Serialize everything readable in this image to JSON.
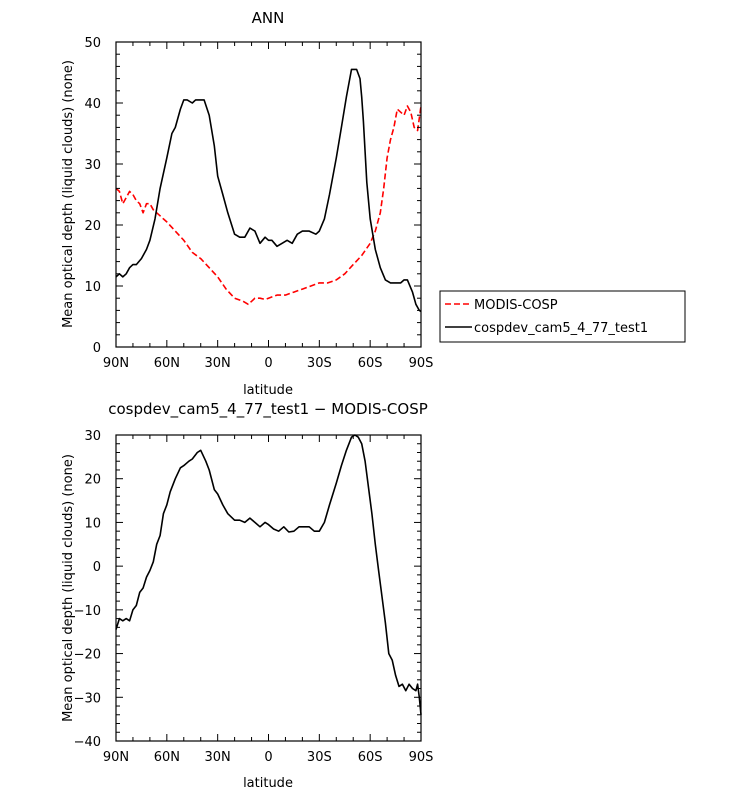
{
  "chart_data": [
    {
      "type": "line",
      "title": "ANN",
      "xlabel": "latitude",
      "ylabel": "Mean optical depth (liquid clouds) (none)",
      "xlim": [
        90,
        -90
      ],
      "ylim": [
        0,
        50
      ],
      "xticks": [
        {
          "value": 90,
          "label": "90N"
        },
        {
          "value": 60,
          "label": "60N"
        },
        {
          "value": 30,
          "label": "30N"
        },
        {
          "value": 0,
          "label": "0"
        },
        {
          "value": -30,
          "label": "30S"
        },
        {
          "value": -60,
          "label": "60S"
        },
        {
          "value": -90,
          "label": "90S"
        }
      ],
      "yticks": [
        {
          "value": 0,
          "label": "0"
        },
        {
          "value": 10,
          "label": "10"
        },
        {
          "value": 20,
          "label": "20"
        },
        {
          "value": 30,
          "label": "30"
        },
        {
          "value": 40,
          "label": "40"
        },
        {
          "value": 50,
          "label": "50"
        }
      ],
      "legend_position": "right",
      "series": [
        {
          "name": "MODIS-COSP",
          "color": "#ff0000",
          "dash": "dashed",
          "x": [
            90,
            88,
            86,
            84,
            82,
            80,
            78,
            76,
            74,
            72,
            70,
            68,
            66,
            64,
            62,
            60,
            55,
            50,
            45,
            40,
            35,
            30,
            25,
            20,
            15,
            12,
            10,
            8,
            5,
            2,
            0,
            -5,
            -10,
            -15,
            -20,
            -25,
            -30,
            -35,
            -40,
            -45,
            -50,
            -55,
            -60,
            -63,
            -66,
            -68,
            -70,
            -72,
            -74,
            -76,
            -78,
            -80,
            -82,
            -84,
            -86,
            -88,
            -90
          ],
          "y": [
            26,
            25.5,
            23.5,
            24.5,
            25.5,
            25,
            24,
            23.5,
            22,
            23.5,
            23.5,
            22.5,
            22,
            21.5,
            21,
            20.5,
            19,
            17.5,
            15.5,
            14.5,
            13,
            11.5,
            9.5,
            8,
            7.5,
            7,
            7.5,
            8,
            8,
            7.8,
            8,
            8.5,
            8.5,
            9,
            9.5,
            10,
            10.5,
            10.5,
            11,
            12,
            13.5,
            15,
            17,
            19,
            22,
            26,
            31,
            34,
            36,
            39,
            38.5,
            38,
            39.5,
            38.5,
            36,
            35.5,
            39.5
          ]
        },
        {
          "name": "cospdev_cam5_4_77_test1",
          "color": "#000000",
          "dash": "solid",
          "x": [
            90,
            88,
            86,
            84,
            82,
            80,
            78,
            75,
            72,
            70,
            67,
            64,
            60,
            57,
            55,
            52,
            50,
            48,
            45,
            43,
            40,
            38,
            35,
            32,
            30,
            27,
            24,
            20,
            17,
            14,
            11,
            8,
            5,
            2,
            0,
            -2,
            -5,
            -8,
            -11,
            -14,
            -17,
            -20,
            -24,
            -28,
            -30,
            -33,
            -36,
            -40,
            -43,
            -46,
            -49,
            -52,
            -54,
            -55,
            -56,
            -57,
            -58,
            -60,
            -63,
            -66,
            -69,
            -72,
            -75,
            -78,
            -80,
            -82,
            -85,
            -87,
            -89,
            -90
          ],
          "y": [
            11.5,
            12,
            11.5,
            12,
            13,
            13.5,
            13.5,
            14.5,
            16,
            17.5,
            21,
            26,
            31,
            35,
            36,
            39,
            40.5,
            40.5,
            40,
            40.5,
            40.5,
            40.5,
            38,
            33,
            28,
            25,
            22,
            18.5,
            18,
            18,
            19.5,
            19,
            17,
            18,
            17.5,
            17.5,
            16.5,
            17,
            17.5,
            17,
            18.5,
            19,
            19,
            18.5,
            19,
            21,
            25,
            31,
            36,
            41,
            45.5,
            45.5,
            44,
            41,
            37,
            32,
            27,
            21,
            16,
            13,
            11,
            10.5,
            10.5,
            10.5,
            11,
            11,
            9,
            7,
            6,
            5.8
          ]
        }
      ]
    },
    {
      "type": "line",
      "title": "cospdev_cam5_4_77_test1 − MODIS-COSP",
      "xlabel": "latitude",
      "ylabel": "Mean optical depth (liquid clouds) (none)",
      "xlim": [
        90,
        -90
      ],
      "ylim": [
        -40,
        30
      ],
      "xticks": [
        {
          "value": 90,
          "label": "90N"
        },
        {
          "value": 60,
          "label": "60N"
        },
        {
          "value": 30,
          "label": "30N"
        },
        {
          "value": 0,
          "label": "0"
        },
        {
          "value": -30,
          "label": "30S"
        },
        {
          "value": -60,
          "label": "60S"
        },
        {
          "value": -90,
          "label": "90S"
        }
      ],
      "yticks": [
        {
          "value": -40,
          "label": "−40"
        },
        {
          "value": -30,
          "label": "−30"
        },
        {
          "value": -20,
          "label": "−20"
        },
        {
          "value": -10,
          "label": "−10"
        },
        {
          "value": 0,
          "label": "0"
        },
        {
          "value": 10,
          "label": "10"
        },
        {
          "value": 20,
          "label": "20"
        },
        {
          "value": 30,
          "label": "30"
        }
      ],
      "series": [
        {
          "color": "#000000",
          "dash": "solid",
          "x": [
            90,
            88,
            86,
            84,
            82,
            80,
            78,
            76,
            74,
            72,
            70,
            68,
            66,
            64,
            62,
            60,
            58,
            55,
            52,
            50,
            47,
            45,
            42,
            40,
            37,
            35,
            32,
            30,
            27,
            24,
            20,
            17,
            14,
            11,
            8,
            5,
            2,
            0,
            -3,
            -6,
            -9,
            -12,
            -15,
            -18,
            -21,
            -24,
            -27,
            -30,
            -33,
            -36,
            -40,
            -43,
            -46,
            -49,
            -51,
            -53,
            -55,
            -57,
            -59,
            -61,
            -63,
            -65,
            -67,
            -69,
            -71,
            -73,
            -75,
            -77,
            -79,
            -81,
            -83,
            -85,
            -87,
            -88,
            -89,
            -90
          ],
          "y": [
            -14.5,
            -12,
            -12.5,
            -12,
            -12.5,
            -10,
            -9,
            -6,
            -5,
            -2.5,
            -1,
            1,
            5,
            7,
            12,
            14,
            17,
            20,
            22.5,
            23,
            24,
            24.5,
            26,
            26.5,
            24,
            22,
            17.5,
            16.5,
            14,
            12,
            10.5,
            10.5,
            10,
            11,
            10,
            9,
            10,
            9.5,
            8.5,
            8,
            9,
            7.8,
            8,
            9,
            9,
            9,
            8,
            8,
            10,
            14,
            19,
            23,
            26.5,
            29.5,
            30,
            29.5,
            28,
            24,
            18,
            12,
            5,
            -1,
            -7,
            -13,
            -20,
            -21.5,
            -25,
            -27.5,
            -27,
            -28.5,
            -27,
            -28,
            -28.5,
            -27,
            -30,
            -34
          ]
        }
      ]
    }
  ]
}
